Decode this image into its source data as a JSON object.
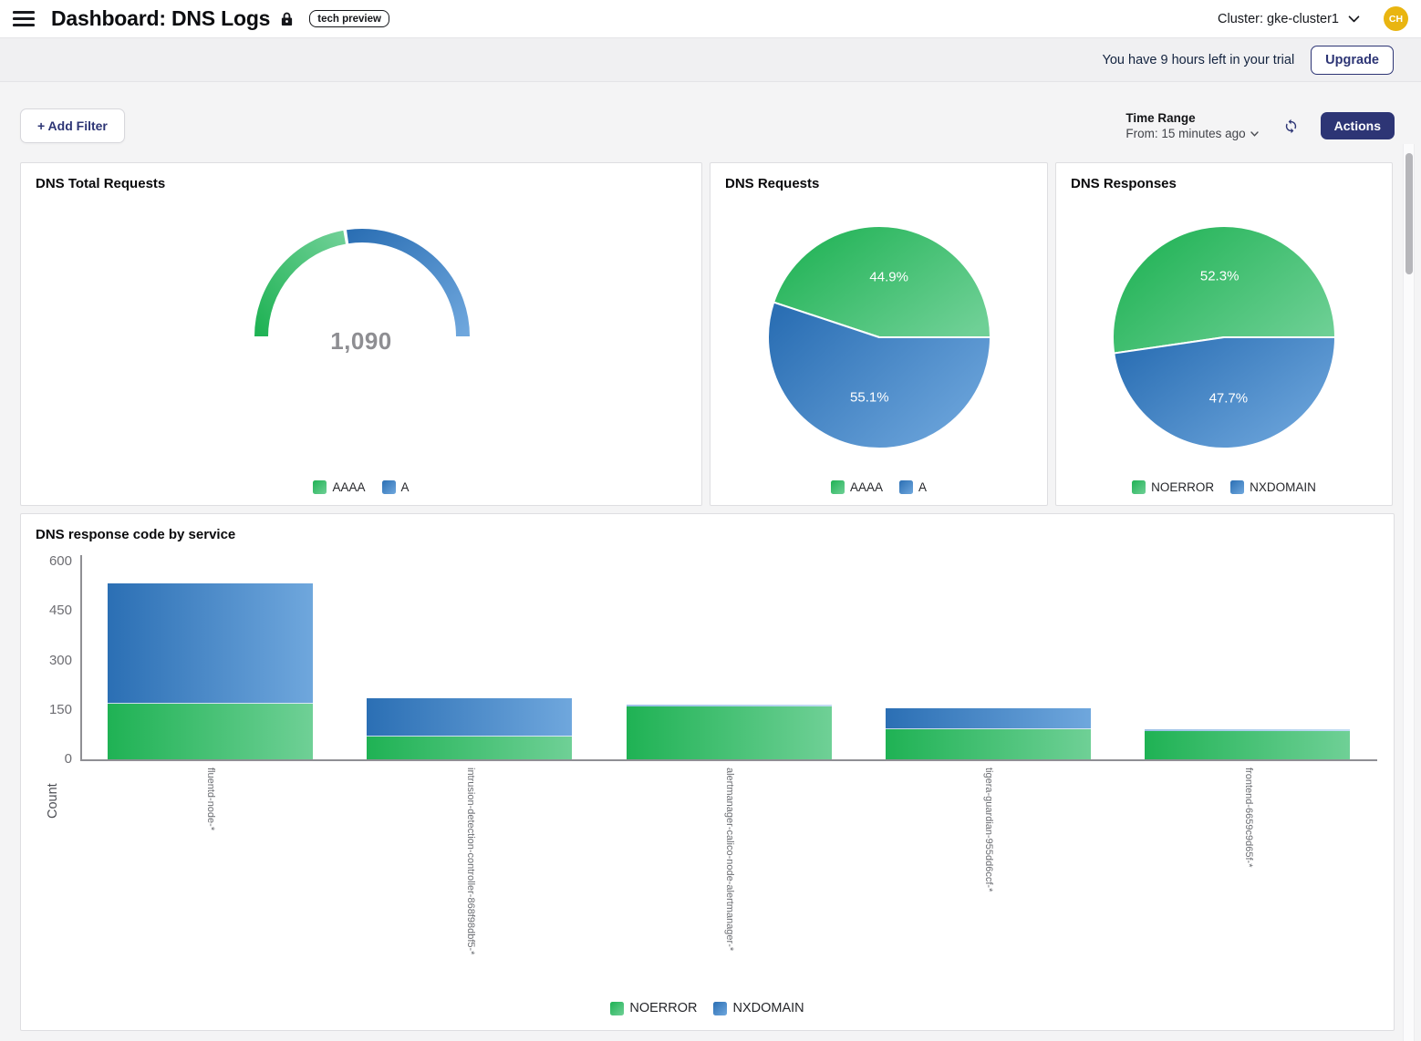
{
  "header": {
    "title": "Dashboard: DNS Logs",
    "badge": "tech preview",
    "cluster": "Cluster: gke-cluster1",
    "avatar": "CH"
  },
  "trial": {
    "message": "You have 9 hours left in your trial",
    "upgrade": "Upgrade"
  },
  "toolbar": {
    "add_filter": "+ Add Filter",
    "time_range_label": "Time Range",
    "time_range_value": "From: 15 minutes ago",
    "actions": "Actions"
  },
  "colors": {
    "green_dark": "#1fb254",
    "green_light": "#6fd096",
    "blue_dark": "#2b6fb4",
    "blue_light": "#6fa7dd",
    "navy": "#2d3575",
    "gold": "#e9b511",
    "axis_gray": "#8f8f94"
  },
  "chart_data": [
    {
      "type": "gauge",
      "title": "DNS Total Requests",
      "total": 1090,
      "total_label": "1,090",
      "segments": [
        {
          "name": "AAAA",
          "pct": 44.9,
          "color": "green"
        },
        {
          "name": "A",
          "pct": 55.1,
          "color": "blue"
        }
      ],
      "legend": [
        {
          "label": "AAAA",
          "color": "green"
        },
        {
          "label": "A",
          "color": "blue"
        }
      ]
    },
    {
      "type": "pie",
      "title": "DNS Requests",
      "slices": [
        {
          "name": "AAAA",
          "pct": 44.9,
          "color": "green"
        },
        {
          "name": "A",
          "pct": 55.1,
          "color": "blue"
        }
      ],
      "legend": [
        {
          "label": "AAAA",
          "color": "green"
        },
        {
          "label": "A",
          "color": "blue"
        }
      ]
    },
    {
      "type": "pie",
      "title": "DNS Responses",
      "slices": [
        {
          "name": "NOERROR",
          "pct": 52.3,
          "color": "green"
        },
        {
          "name": "NXDOMAIN",
          "pct": 47.7,
          "color": "blue"
        }
      ],
      "legend": [
        {
          "label": "NOERROR",
          "color": "green"
        },
        {
          "label": "NXDOMAIN",
          "color": "blue"
        }
      ]
    },
    {
      "type": "bar",
      "title": "DNS response code by service",
      "xlabel": "",
      "ylabel": "Count",
      "ylim": [
        0,
        600
      ],
      "yticks": [
        0,
        150,
        300,
        450,
        600
      ],
      "stacked": true,
      "categories": [
        "fluentd-node-*",
        "intrusion-detection-controller-868f98dbf5-*",
        "alertmanager-calico-node-alertmanager-*",
        "tigera-guardian-955dd6ccf-*",
        "frontend-6659c9d65f-*"
      ],
      "series": [
        {
          "name": "NOERROR",
          "color": "green",
          "values": [
            170,
            70,
            160,
            90,
            85
          ]
        },
        {
          "name": "NXDOMAIN",
          "color": "blue",
          "values": [
            365,
            115,
            0,
            65,
            0
          ]
        }
      ],
      "legend": [
        {
          "label": "NOERROR",
          "color": "green"
        },
        {
          "label": "NXDOMAIN",
          "color": "blue"
        }
      ]
    }
  ]
}
